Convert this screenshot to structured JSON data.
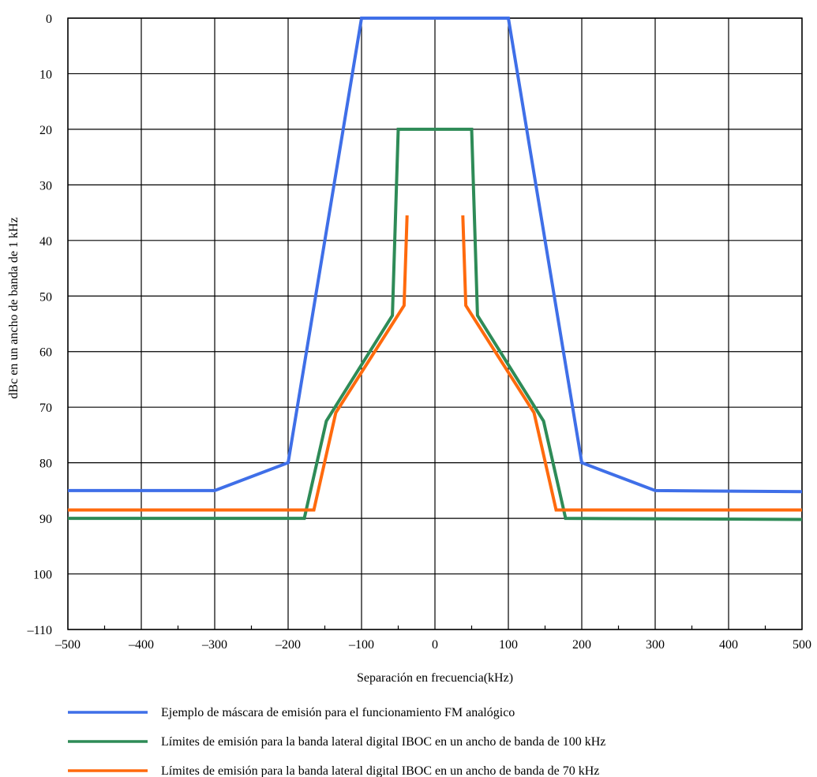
{
  "chart_data": {
    "type": "line",
    "title": "",
    "xlabel": "Separación en frecuencia(kHz)",
    "ylabel": "dBc en un ancho de banda de 1 kHz",
    "xlim": [
      -500,
      500
    ],
    "ylim": [
      0,
      110
    ],
    "y_inverted": true,
    "grid": true,
    "legend_position": "bottom",
    "xticks": [
      -500,
      -400,
      -300,
      -200,
      -100,
      0,
      100,
      200,
      300,
      400,
      500
    ],
    "xtick_labels": [
      "–500",
      "–400",
      "–300",
      "–200",
      "–100",
      "0",
      "100",
      "200",
      "300",
      "400",
      "500"
    ],
    "yticks": [
      0,
      10,
      20,
      30,
      40,
      50,
      60,
      70,
      80,
      90,
      100,
      110
    ],
    "ytick_labels": [
      "0",
      "10",
      "20",
      "30",
      "40",
      "50",
      "60",
      "70",
      "80",
      "90",
      "100",
      "–110"
    ],
    "series": [
      {
        "name": "Ejemplo de máscara de emisión para el funcionamiento FM analógico",
        "color": "#3F6FE8",
        "segments": [
          [
            [
              -500,
              85
            ],
            [
              -300,
              85
            ],
            [
              -200,
              80
            ],
            [
              -100,
              0
            ],
            [
              100,
              0
            ],
            [
              200,
              80
            ],
            [
              300,
              85
            ],
            [
              500,
              85.2
            ]
          ]
        ]
      },
      {
        "name": "Límites de emisión para la banda lateral digital IBOC en un ancho de banda de 100 kHz",
        "color": "#2E8B57",
        "segments": [
          [
            [
              -500,
              90
            ],
            [
              -178,
              90
            ],
            [
              -148,
              72.5
            ],
            [
              -58,
              53.5
            ],
            [
              -50,
              20
            ],
            [
              50,
              20
            ],
            [
              58,
              53.5
            ],
            [
              148,
              72.5
            ],
            [
              178,
              90
            ],
            [
              500,
              90.2
            ]
          ]
        ]
      },
      {
        "name": "Límites de emisión para la banda lateral digital IBOC en un ancho de banda de 70 kHz",
        "color": "#FF6A0D",
        "segments": [
          [
            [
              -500,
              88.5
            ],
            [
              -165,
              88.5
            ],
            [
              -135,
              71
            ],
            [
              -42,
              51.7
            ],
            [
              -38,
              35.5
            ]
          ],
          [
            [
              38,
              35.5
            ],
            [
              42,
              51.7
            ],
            [
              135,
              71
            ],
            [
              165,
              88.5
            ],
            [
              500,
              88.5
            ]
          ]
        ]
      }
    ]
  }
}
